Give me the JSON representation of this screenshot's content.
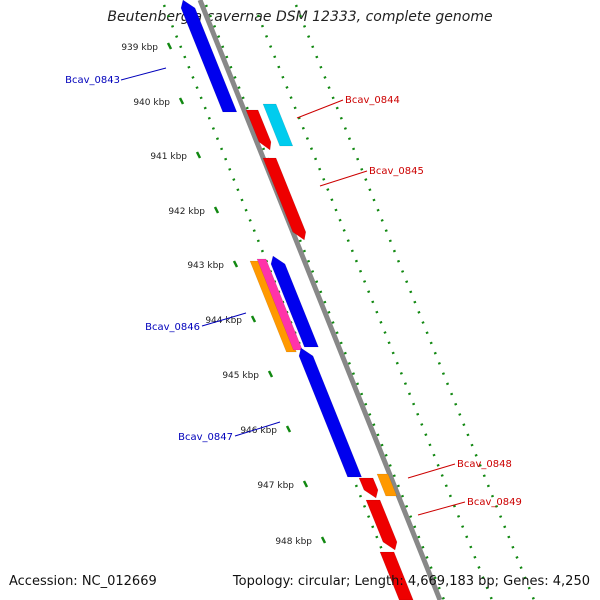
{
  "title": "Beutenbergia cavernae DSM 12333, complete genome",
  "footer": {
    "accession": "Accession: NC_012669",
    "summary": "Topology: circular; Length: 4,669,183 bp; Genes: 4,250"
  },
  "ticks": [
    "939 kbp",
    "940 kbp",
    "941 kbp",
    "942 kbp",
    "943 kbp",
    "944 kbp",
    "945 kbp",
    "946 kbp",
    "947 kbp",
    "948 kbp"
  ],
  "genes": [
    {
      "label": "Bcav_0843",
      "strand": "minus",
      "color": "#0000ee"
    },
    {
      "label": "Bcav_0844",
      "strand": "plus",
      "color": "#ee0000"
    },
    {
      "label": "Bcav_0845",
      "strand": "plus",
      "color": "#ee0000"
    },
    {
      "label": "Bcav_0846",
      "strand": "minus",
      "color": "#0000ee"
    },
    {
      "label": "Bcav_0847",
      "strand": "minus",
      "color": "#0000ee"
    },
    {
      "label": "Bcav_0848",
      "strand": "plus",
      "color": "#ee0000"
    },
    {
      "label": "Bcav_0849",
      "strand": "plus",
      "color": "#ee0000"
    }
  ],
  "colors": {
    "plus_label": "#cc0000",
    "minus_label": "#0000bb",
    "backbone": "#888888",
    "grid_dots": "#118811",
    "cyan": "#00ccee",
    "orange": "#ff9900",
    "magenta": "#ff33aa"
  }
}
